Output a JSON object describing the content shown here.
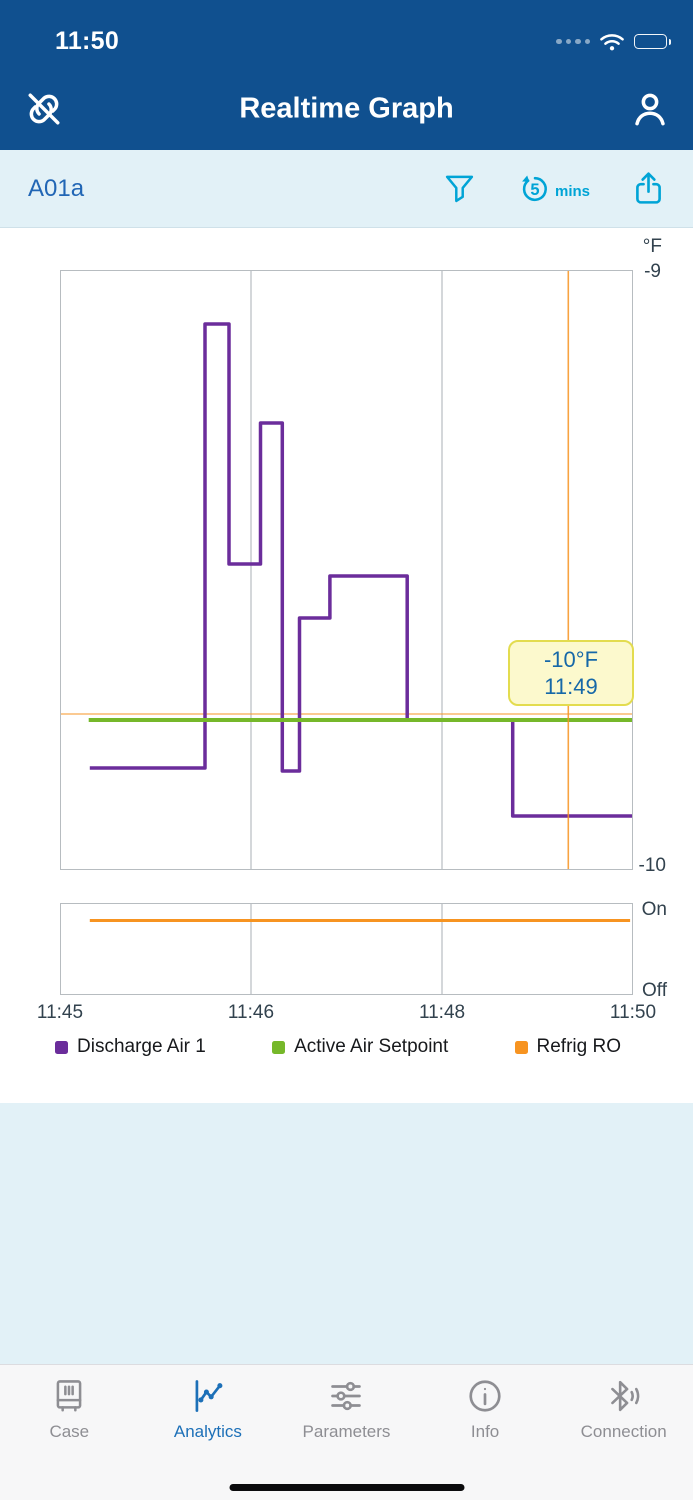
{
  "colors": {
    "header_blue": "#10508F",
    "toolbar_bg": "#E2F1F7",
    "accent_cyan": "#00A4D6",
    "link_blue": "#2166B5",
    "panel_blue": "#E2F1F7",
    "tooltip_bg": "#FCF9CD",
    "tooltip_border": "#E3DC4F",
    "tooltip_text": "#1668A8",
    "tab_active": "#1D70B8",
    "tab_inactive": "#8E8E93",
    "axis_text": "#32424E",
    "chart_border": "#B7BCC0",
    "grid_line": "#A9AFB4"
  },
  "status_bar": {
    "time": "11:50"
  },
  "nav": {
    "title": "Realtime Graph"
  },
  "toolbar": {
    "device_label": "A01a",
    "interval_value": "5",
    "interval_unit": "mins"
  },
  "chart_data": {
    "type": "line",
    "y_axis": {
      "unit_label": "°F",
      "max": -9,
      "min": -10,
      "top_label": "-9",
      "bottom_label": "-10"
    },
    "x_ticks": [
      {
        "label": "11:45",
        "pos": 0
      },
      {
        "label": "11:46",
        "pos": 0.3333
      },
      {
        "label": "11:48",
        "pos": 0.6667
      },
      {
        "label": "11:50",
        "pos": 1
      }
    ],
    "series": [
      {
        "name": "Discharge Air 1",
        "color": "#6B2D9B",
        "width": 3.5,
        "points": [
          [
            0.052,
            -9.83
          ],
          [
            0.253,
            -9.83
          ],
          [
            0.253,
            -9.09
          ],
          [
            0.295,
            -9.09
          ],
          [
            0.295,
            -9.49
          ],
          [
            0.35,
            -9.49
          ],
          [
            0.35,
            -9.255
          ],
          [
            0.388,
            -9.255
          ],
          [
            0.388,
            -9.835
          ],
          [
            0.418,
            -9.835
          ],
          [
            0.418,
            -9.58
          ],
          [
            0.471,
            -9.58
          ],
          [
            0.471,
            -9.51
          ],
          [
            0.606,
            -9.51
          ],
          [
            0.606,
            -9.75
          ],
          [
            0.79,
            -9.75
          ],
          [
            0.79,
            -9.91
          ],
          [
            1,
            -9.91
          ]
        ]
      },
      {
        "name": "Active Air Setpoint",
        "color": "#76B82A",
        "width": 4,
        "points": [
          [
            0.05,
            -9.75
          ],
          [
            1,
            -9.75
          ]
        ]
      }
    ],
    "crosshair": {
      "x": 0.887,
      "value": -9.74,
      "color": "#F79421",
      "tooltip": {
        "line1": "-10°F",
        "line2": "11:49"
      }
    },
    "digital": {
      "name": "Refrig RO",
      "color": "#F79421",
      "on_label": "On",
      "off_label": "Off",
      "points": [
        [
          0.052,
          1
        ],
        [
          0.995,
          1
        ]
      ]
    },
    "legend": [
      {
        "label": "Discharge Air 1",
        "color": "#6B2D9B"
      },
      {
        "label": "Active Air Setpoint",
        "color": "#76B82A"
      },
      {
        "label": "Refrig RO",
        "color": "#F79421"
      }
    ]
  },
  "tabs": [
    {
      "label": "Case",
      "active": false
    },
    {
      "label": "Analytics",
      "active": true
    },
    {
      "label": "Parameters",
      "active": false
    },
    {
      "label": "Info",
      "active": false
    },
    {
      "label": "Connection",
      "active": false
    }
  ]
}
